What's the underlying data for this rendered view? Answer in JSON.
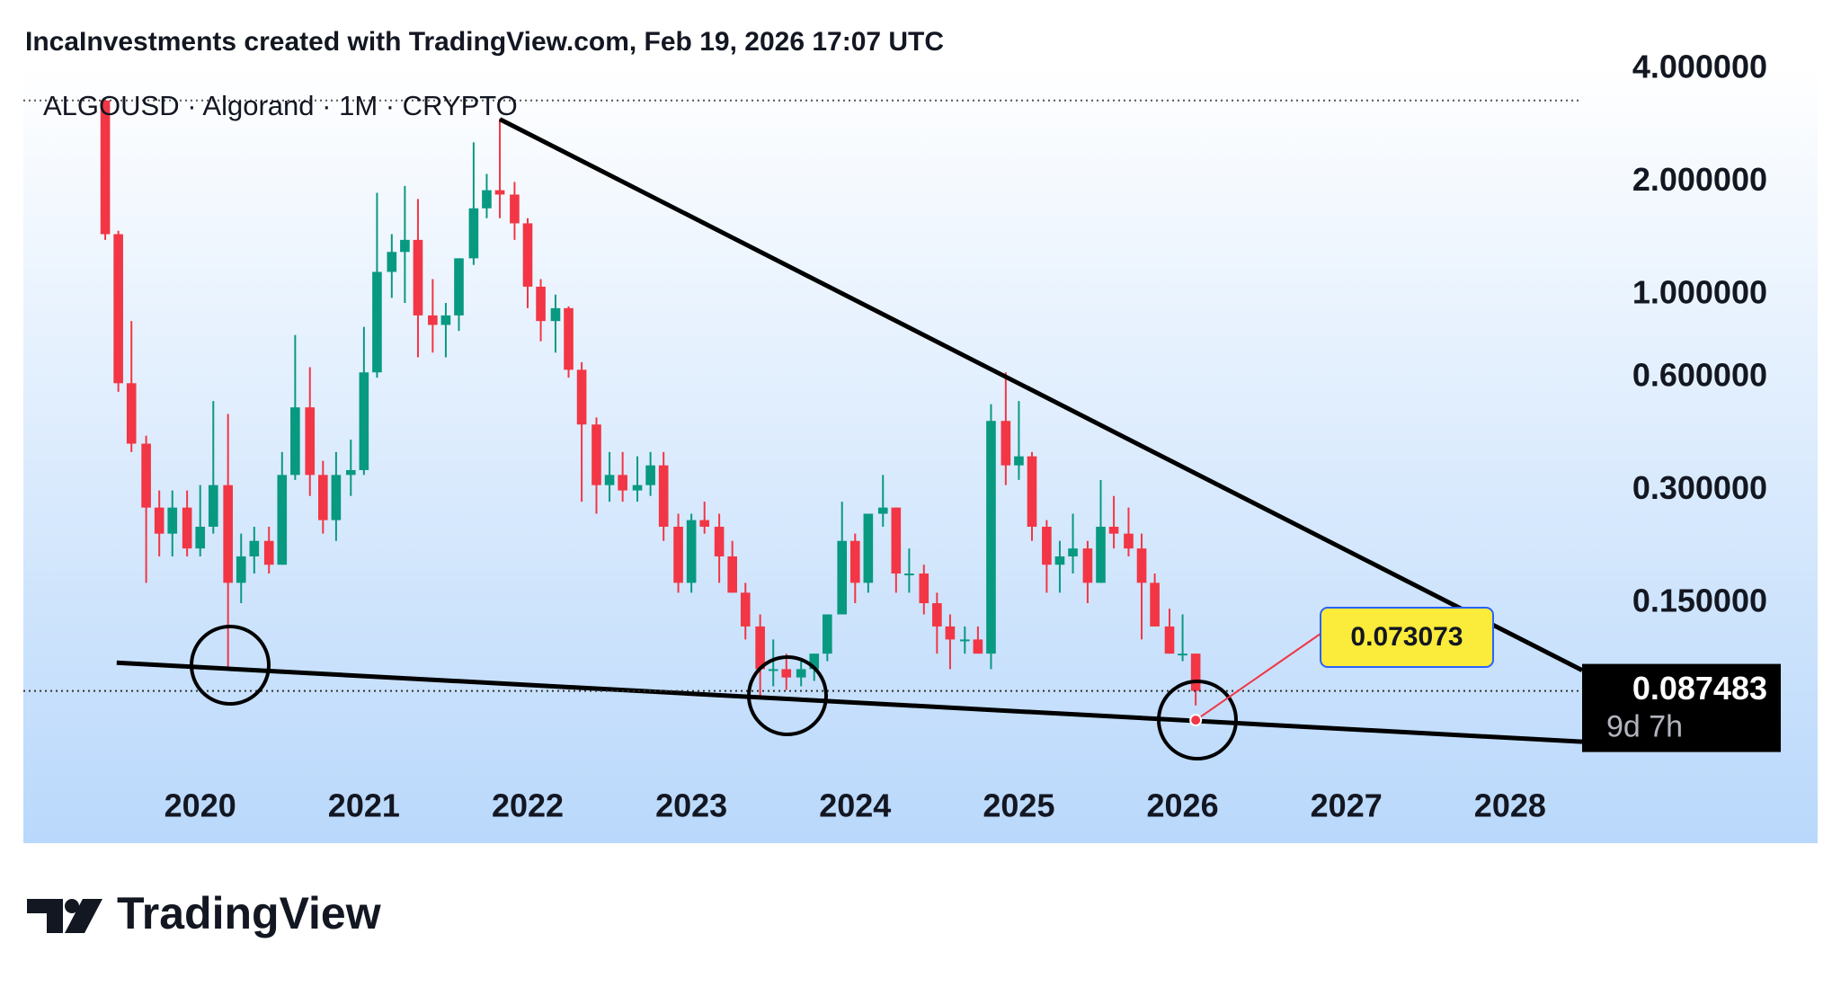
{
  "header": "IncaInvestments created with TradingView.com, Feb 19, 2026 17:07 UTC",
  "footer_logo": "TradingView",
  "chart_data": {
    "type": "candlestick",
    "title": "ALGOUSD · Algorand · 1M · CRYPTO",
    "log_scale": true,
    "up_color": "#089981",
    "down_color": "#f23645",
    "x": [
      2019.42,
      2019.5,
      2019.58,
      2019.67,
      2019.75,
      2019.83,
      2019.92,
      2020,
      2020.08,
      2020.17,
      2020.25,
      2020.33,
      2020.42,
      2020.5,
      2020.58,
      2020.67,
      2020.75,
      2020.83,
      2020.92,
      2021,
      2021.08,
      2021.17,
      2021.25,
      2021.33,
      2021.42,
      2021.5,
      2021.58,
      2021.67,
      2021.75,
      2021.83,
      2021.92,
      2022,
      2022.08,
      2022.17,
      2022.25,
      2022.33,
      2022.42,
      2022.5,
      2022.58,
      2022.67,
      2022.75,
      2022.83,
      2022.92,
      2023,
      2023.08,
      2023.17,
      2023.25,
      2023.33,
      2023.42,
      2023.5,
      2023.58,
      2023.67,
      2023.75,
      2023.83,
      2023.92,
      2024,
      2024.08,
      2024.17,
      2024.25,
      2024.33,
      2024.42,
      2024.5,
      2024.58,
      2024.67,
      2024.75,
      2024.83,
      2024.92,
      2025,
      2025.08,
      2025.17,
      2025.25,
      2025.33,
      2025.42,
      2025.5,
      2025.58,
      2025.67,
      2025.75,
      2025.83,
      2025.92,
      2026,
      2026.08
    ],
    "open": [
      3.3,
      1.45,
      0.58,
      0.4,
      0.27,
      0.23,
      0.27,
      0.21,
      0.24,
      0.31,
      0.17,
      0.2,
      0.22,
      0.19,
      0.33,
      0.5,
      0.33,
      0.25,
      0.33,
      0.34,
      0.62,
      1.15,
      1.3,
      1.4,
      0.88,
      0.83,
      0.88,
      1.25,
      1.7,
      1.9,
      1.85,
      1.55,
      1.05,
      0.85,
      0.92,
      0.63,
      0.45,
      0.31,
      0.33,
      0.3,
      0.31,
      0.35,
      0.24,
      0.17,
      0.25,
      0.24,
      0.2,
      0.16,
      0.13,
      0.1,
      0.1,
      0.095,
      0.1,
      0.11,
      0.14,
      0.22,
      0.17,
      0.26,
      0.27,
      0.18,
      0.18,
      0.15,
      0.13,
      0.12,
      0.12,
      0.11,
      0.46,
      0.35,
      0.37,
      0.24,
      0.19,
      0.2,
      0.21,
      0.17,
      0.24,
      0.23,
      0.21,
      0.17,
      0.13,
      0.11,
      0.11
    ],
    "high": [
      3.3,
      1.48,
      0.85,
      0.42,
      0.3,
      0.3,
      0.3,
      0.31,
      0.52,
      0.48,
      0.23,
      0.24,
      0.24,
      0.38,
      0.78,
      0.64,
      0.36,
      0.38,
      0.41,
      0.82,
      1.87,
      1.45,
      1.95,
      1.8,
      1.1,
      0.95,
      1.25,
      2.55,
      2.1,
      2.95,
      2.0,
      1.6,
      1.1,
      1.0,
      0.93,
      0.66,
      0.47,
      0.38,
      0.38,
      0.37,
      0.38,
      0.38,
      0.26,
      0.26,
      0.28,
      0.26,
      0.22,
      0.17,
      0.14,
      0.12,
      0.11,
      0.105,
      0.11,
      0.14,
      0.28,
      0.23,
      0.26,
      0.33,
      0.27,
      0.21,
      0.19,
      0.16,
      0.14,
      0.13,
      0.13,
      0.51,
      0.62,
      0.52,
      0.38,
      0.25,
      0.22,
      0.26,
      0.22,
      0.32,
      0.29,
      0.27,
      0.23,
      0.18,
      0.145,
      0.14,
      0.11
    ],
    "low": [
      1.4,
      0.55,
      0.38,
      0.17,
      0.2,
      0.2,
      0.2,
      0.2,
      0.23,
      0.1,
      0.15,
      0.18,
      0.18,
      0.19,
      0.32,
      0.29,
      0.23,
      0.22,
      0.29,
      0.33,
      0.6,
      0.98,
      0.95,
      0.68,
      0.7,
      0.68,
      0.8,
      1.2,
      1.6,
      1.6,
      1.4,
      0.92,
      0.75,
      0.7,
      0.6,
      0.28,
      0.26,
      0.28,
      0.28,
      0.28,
      0.29,
      0.22,
      0.16,
      0.16,
      0.23,
      0.17,
      0.16,
      0.12,
      0.085,
      0.09,
      0.088,
      0.09,
      0.093,
      0.105,
      0.14,
      0.15,
      0.16,
      0.24,
      0.16,
      0.16,
      0.14,
      0.11,
      0.1,
      0.11,
      0.11,
      0.1,
      0.31,
      0.32,
      0.22,
      0.16,
      0.16,
      0.18,
      0.15,
      0.17,
      0.21,
      0.2,
      0.12,
      0.13,
      0.11,
      0.105,
      0.08
    ],
    "close": [
      1.45,
      0.58,
      0.4,
      0.27,
      0.23,
      0.27,
      0.21,
      0.24,
      0.31,
      0.17,
      0.2,
      0.22,
      0.19,
      0.33,
      0.5,
      0.33,
      0.25,
      0.33,
      0.34,
      0.62,
      1.15,
      1.3,
      1.4,
      0.88,
      0.83,
      0.88,
      1.25,
      1.7,
      1.9,
      1.85,
      1.55,
      1.05,
      0.85,
      0.92,
      0.63,
      0.45,
      0.31,
      0.33,
      0.3,
      0.31,
      0.35,
      0.24,
      0.17,
      0.25,
      0.24,
      0.2,
      0.16,
      0.13,
      0.1,
      0.1,
      0.095,
      0.1,
      0.11,
      0.14,
      0.22,
      0.17,
      0.26,
      0.27,
      0.18,
      0.18,
      0.15,
      0.13,
      0.12,
      0.12,
      0.11,
      0.46,
      0.35,
      0.37,
      0.24,
      0.19,
      0.2,
      0.21,
      0.17,
      0.24,
      0.23,
      0.21,
      0.17,
      0.13,
      0.11,
      0.11,
      0.087483
    ],
    "xlim": [
      2018.92,
      2028.44
    ],
    "xticks": [
      2020,
      2021,
      2022,
      2023,
      2024,
      2025,
      2026,
      2027,
      2028
    ],
    "ylim": [
      0.0343,
      4.11
    ],
    "yticks": [
      {
        "value": 4,
        "label": "4.000000"
      },
      {
        "value": 2,
        "label": "2.000000"
      },
      {
        "value": 1,
        "label": "1.000000"
      },
      {
        "value": 0.6,
        "label": "0.600000"
      },
      {
        "value": 0.3,
        "label": "0.300000"
      },
      {
        "value": 0.15,
        "label": "0.150000"
      }
    ],
    "trendlines": [
      {
        "x": [
          2021.83,
          2028.44
        ],
        "y": [
          2.94,
          0.0993
        ]
      },
      {
        "x": [
          2019.49,
          2028.44
        ],
        "y": [
          0.104,
          0.064
        ]
      }
    ],
    "last_price": {
      "value": 0.087483,
      "countdown": "9d 7h"
    },
    "callout": {
      "value": 0.073073
    }
  }
}
